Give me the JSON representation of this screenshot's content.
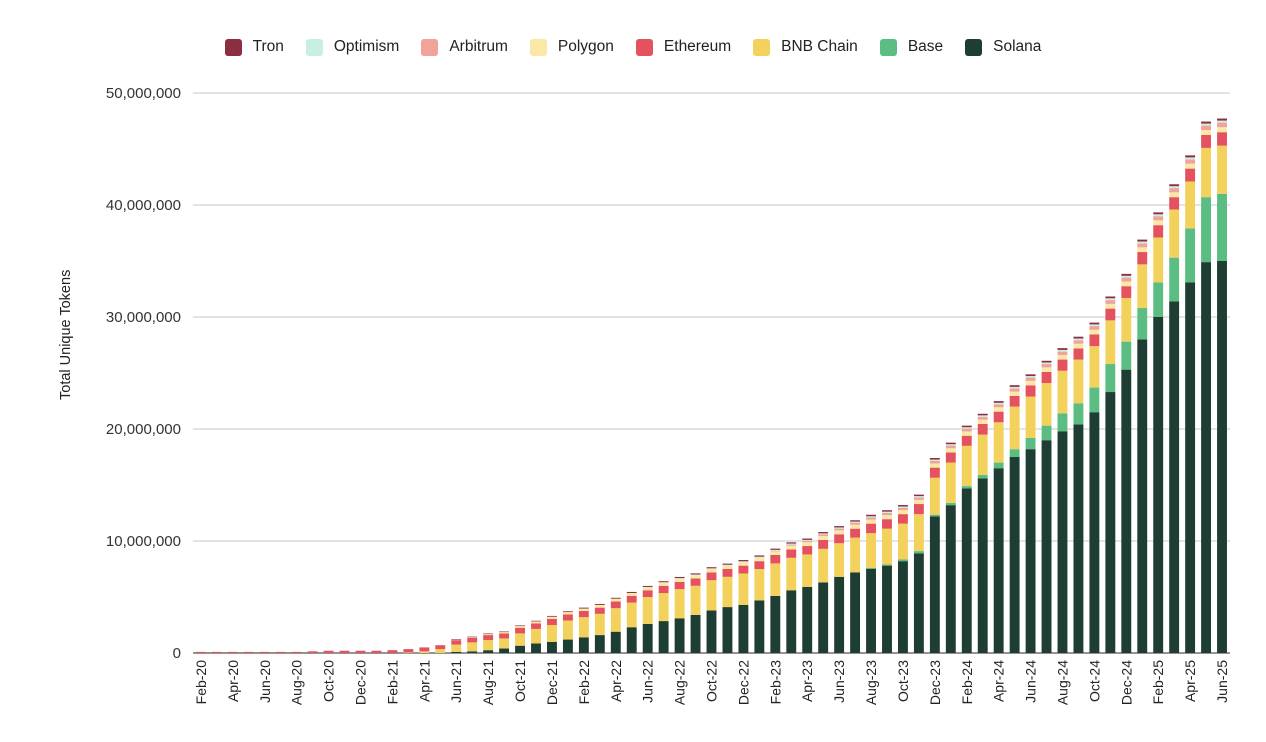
{
  "chart_data": {
    "type": "bar",
    "stacked": true,
    "xlabel": "",
    "ylabel": "Total Unique Tokens",
    "ylim": [
      0,
      50000000
    ],
    "yticks": [
      "0",
      "10,000,000",
      "20,000,000",
      "30,000,000",
      "40,000,000",
      "50,000,000"
    ],
    "ytick_values": [
      0,
      10000000,
      20000000,
      30000000,
      40000000,
      50000000
    ],
    "grid": true,
    "legend_position": "top",
    "categories": [
      "Feb-20",
      "Mar-20",
      "Apr-20",
      "May-20",
      "Jun-20",
      "Jul-20",
      "Aug-20",
      "Sep-20",
      "Oct-20",
      "Nov-20",
      "Dec-20",
      "Jan-21",
      "Feb-21",
      "Mar-21",
      "Apr-21",
      "May-21",
      "Jun-21",
      "Jul-21",
      "Aug-21",
      "Sep-21",
      "Oct-21",
      "Nov-21",
      "Dec-21",
      "Jan-22",
      "Feb-22",
      "Mar-22",
      "Apr-22",
      "May-22",
      "Jun-22",
      "Jul-22",
      "Aug-22",
      "Sep-22",
      "Oct-22",
      "Nov-22",
      "Dec-22",
      "Jan-23",
      "Feb-23",
      "Mar-23",
      "Apr-23",
      "May-23",
      "Jun-23",
      "Jul-23",
      "Aug-23",
      "Sep-23",
      "Oct-23",
      "Nov-23",
      "Dec-23",
      "Jan-24",
      "Feb-24",
      "Mar-24",
      "Apr-24",
      "May-24",
      "Jun-24",
      "Jul-24",
      "Aug-24",
      "Sep-24",
      "Oct-24",
      "Nov-24",
      "Dec-24",
      "Jan-25",
      "Feb-25",
      "Mar-25",
      "Apr-25",
      "May-25",
      "Jun-25"
    ],
    "tick_labels": [
      "Feb-20",
      "Apr-20",
      "Jun-20",
      "Aug-20",
      "Oct-20",
      "Dec-20",
      "Feb-21",
      "Apr-21",
      "Jun-21",
      "Aug-21",
      "Oct-21",
      "Dec-21",
      "Feb-22",
      "Apr-22",
      "Jun-22",
      "Aug-22",
      "Oct-22",
      "Dec-22",
      "Feb-23",
      "Apr-23",
      "Jun-23",
      "Aug-23",
      "Oct-23",
      "Dec-23",
      "Feb-24",
      "Apr-24",
      "Jun-24",
      "Aug-24",
      "Oct-24",
      "Dec-24",
      "Feb-25",
      "Apr-25",
      "Jun-25"
    ],
    "series": [
      {
        "name": "Solana",
        "color": "#1e3d33",
        "values": [
          0,
          0,
          0,
          0,
          0,
          0,
          0,
          0,
          0,
          0,
          0,
          0,
          0,
          0,
          0,
          0,
          100000,
          150000,
          250000,
          400000,
          650000,
          850000,
          1000000,
          1200000,
          1400000,
          1600000,
          1900000,
          2300000,
          2600000,
          2850000,
          3100000,
          3400000,
          3800000,
          4100000,
          4300000,
          4700000,
          5100000,
          5600000,
          5900000,
          6300000,
          6800000,
          7200000,
          7500000,
          7800000,
          8200000,
          8900000,
          12200000,
          13200000,
          14700000,
          15600000,
          16500000,
          17500000,
          18200000,
          19000000,
          19800000,
          20400000,
          21500000,
          23300000,
          25300000,
          28000000,
          30000000,
          31400000,
          33100000,
          34900000,
          35000000
        ]
      },
      {
        "name": "Base",
        "color": "#5bbd82",
        "values": [
          0,
          0,
          0,
          0,
          0,
          0,
          0,
          0,
          0,
          0,
          0,
          0,
          0,
          0,
          0,
          0,
          0,
          0,
          0,
          0,
          0,
          0,
          0,
          0,
          0,
          0,
          0,
          0,
          0,
          0,
          0,
          0,
          0,
          0,
          0,
          0,
          0,
          0,
          0,
          0,
          0,
          0,
          100000,
          100000,
          150000,
          200000,
          150000,
          200000,
          200000,
          300000,
          500000,
          700000,
          1000000,
          1300000,
          1600000,
          1900000,
          2200000,
          2500000,
          2500000,
          2800000,
          3100000,
          3900000,
          4800000,
          5800000,
          6000000
        ]
      },
      {
        "name": "BNB Chain",
        "color": "#f2d25c",
        "values": [
          0,
          0,
          0,
          0,
          0,
          0,
          0,
          0,
          0,
          0,
          0,
          0,
          0,
          50000,
          150000,
          350000,
          650000,
          800000,
          900000,
          900000,
          1100000,
          1300000,
          1500000,
          1700000,
          1800000,
          1900000,
          2100000,
          2200000,
          2400000,
          2500000,
          2600000,
          2600000,
          2700000,
          2700000,
          2800000,
          2800000,
          2900000,
          2900000,
          2900000,
          3000000,
          3000000,
          3100000,
          3100000,
          3200000,
          3200000,
          3300000,
          3300000,
          3600000,
          3600000,
          3600000,
          3600000,
          3800000,
          3700000,
          3800000,
          3800000,
          3900000,
          3700000,
          3900000,
          3900000,
          3900000,
          4000000,
          4300000,
          4200000,
          4400000,
          4300000
        ]
      },
      {
        "name": "Ethereum",
        "color": "#e5525f",
        "values": [
          100000,
          100000,
          100000,
          100000,
          100000,
          100000,
          100000,
          150000,
          200000,
          200000,
          200000,
          200000,
          250000,
          300000,
          350000,
          350000,
          400000,
          400000,
          450000,
          450000,
          500000,
          500000,
          550000,
          550000,
          550000,
          550000,
          600000,
          600000,
          600000,
          650000,
          650000,
          650000,
          700000,
          700000,
          700000,
          700000,
          750000,
          750000,
          750000,
          800000,
          800000,
          800000,
          850000,
          850000,
          850000,
          900000,
          900000,
          900000,
          900000,
          950000,
          950000,
          950000,
          1000000,
          1000000,
          1000000,
          1000000,
          1050000,
          1050000,
          1050000,
          1100000,
          1100000,
          1100000,
          1150000,
          1150000,
          1200000
        ]
      },
      {
        "name": "Polygon",
        "color": "#fbe8a6",
        "values": [
          0,
          0,
          0,
          0,
          0,
          0,
          0,
          0,
          0,
          0,
          0,
          0,
          0,
          0,
          0,
          0,
          50000,
          80000,
          100000,
          120000,
          150000,
          170000,
          190000,
          200000,
          220000,
          240000,
          250000,
          260000,
          270000,
          280000,
          290000,
          300000,
          300000,
          310000,
          320000,
          320000,
          330000,
          330000,
          340000,
          340000,
          350000,
          350000,
          360000,
          360000,
          360000,
          370000,
          370000,
          380000,
          380000,
          380000,
          390000,
          390000,
          400000,
          400000,
          400000,
          410000,
          410000,
          420000,
          420000,
          420000,
          430000,
          430000,
          440000,
          440000,
          450000
        ]
      },
      {
        "name": "Arbitrum",
        "color": "#f0a39b",
        "values": [
          0,
          0,
          0,
          0,
          0,
          0,
          0,
          0,
          0,
          0,
          0,
          0,
          0,
          0,
          0,
          0,
          0,
          0,
          0,
          0,
          0,
          0,
          0,
          0,
          0,
          0,
          0,
          0,
          0,
          0,
          0,
          0,
          0,
          0,
          0,
          0,
          50000,
          100000,
          120000,
          140000,
          160000,
          180000,
          190000,
          200000,
          210000,
          220000,
          230000,
          240000,
          250000,
          260000,
          270000,
          280000,
          290000,
          300000,
          310000,
          320000,
          330000,
          340000,
          350000,
          360000,
          370000,
          380000,
          390000,
          400000,
          410000
        ]
      },
      {
        "name": "Optimism",
        "color": "#c8f0e2",
        "values": [
          0,
          0,
          0,
          0,
          0,
          0,
          0,
          0,
          0,
          0,
          0,
          0,
          0,
          0,
          0,
          0,
          0,
          0,
          0,
          0,
          0,
          0,
          0,
          0,
          0,
          0,
          0,
          0,
          30000,
          40000,
          50000,
          60000,
          60000,
          70000,
          70000,
          80000,
          80000,
          90000,
          90000,
          100000,
          100000,
          100000,
          110000,
          110000,
          110000,
          120000,
          120000,
          120000,
          130000,
          130000,
          130000,
          140000,
          140000,
          140000,
          150000,
          150000,
          150000,
          160000,
          160000,
          160000,
          170000,
          170000,
          170000,
          180000,
          180000
        ]
      },
      {
        "name": "Tron",
        "color": "#8b2e3f",
        "values": [
          0,
          0,
          0,
          0,
          0,
          0,
          0,
          0,
          0,
          0,
          0,
          0,
          0,
          0,
          0,
          0,
          20000,
          30000,
          40000,
          50000,
          60000,
          60000,
          70000,
          70000,
          80000,
          80000,
          80000,
          90000,
          90000,
          90000,
          100000,
          100000,
          100000,
          100000,
          110000,
          110000,
          110000,
          110000,
          120000,
          120000,
          120000,
          120000,
          130000,
          130000,
          130000,
          130000,
          140000,
          140000,
          140000,
          140000,
          150000,
          150000,
          150000,
          150000,
          160000,
          160000,
          160000,
          160000,
          170000,
          170000,
          170000,
          170000,
          180000,
          180000,
          180000
        ]
      }
    ],
    "legend_order": [
      "Tron",
      "Optimism",
      "Arbitrum",
      "Polygon",
      "Ethereum",
      "BNB Chain",
      "Base",
      "Solana"
    ]
  }
}
